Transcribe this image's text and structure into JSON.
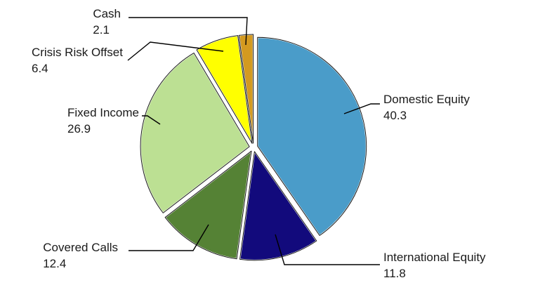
{
  "chart_data": {
    "type": "pie",
    "title": "",
    "start_angle_deg": 0,
    "direction": "clockwise",
    "exploded": true,
    "slices": [
      {
        "label": "Domestic Equity",
        "value": 40.3,
        "color": "#4a9cc9"
      },
      {
        "label": "International Equity",
        "value": 11.8,
        "color": "#120a7c"
      },
      {
        "label": "Covered Calls",
        "value": 12.4,
        "color": "#558235"
      },
      {
        "label": "Fixed Income",
        "value": 26.9,
        "color": "#bce093"
      },
      {
        "label": "Crisis Risk Offset",
        "value": 6.4,
        "color": "#ffff00"
      },
      {
        "label": "Cash",
        "value": 2.1,
        "color": "#d49a20"
      }
    ]
  }
}
